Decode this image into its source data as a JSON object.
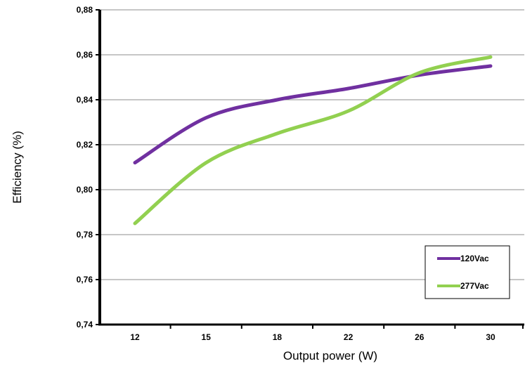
{
  "chart_data": {
    "type": "line",
    "title": "",
    "xlabel": "Output power (W)",
    "ylabel": "Efficiency (%)",
    "categories": [
      "12",
      "15",
      "18",
      "22",
      "26",
      "30"
    ],
    "ylim": [
      0.74,
      0.88
    ],
    "yticks": [
      "0,74",
      "0,76",
      "0,78",
      "0,80",
      "0,82",
      "0,84",
      "0,86",
      "0,88"
    ],
    "ytick_values": [
      0.74,
      0.76,
      0.78,
      0.8,
      0.82,
      0.84,
      0.86,
      0.88
    ],
    "grid": "horizontal",
    "legend_position": "bottom-right",
    "series": [
      {
        "name": "120Vac",
        "color": "#7030A0",
        "values": [
          0.812,
          0.832,
          0.84,
          0.845,
          0.851,
          0.855
        ]
      },
      {
        "name": "277Vac",
        "color": "#92D050",
        "values": [
          0.785,
          0.812,
          0.825,
          0.835,
          0.852,
          0.859
        ]
      }
    ]
  }
}
